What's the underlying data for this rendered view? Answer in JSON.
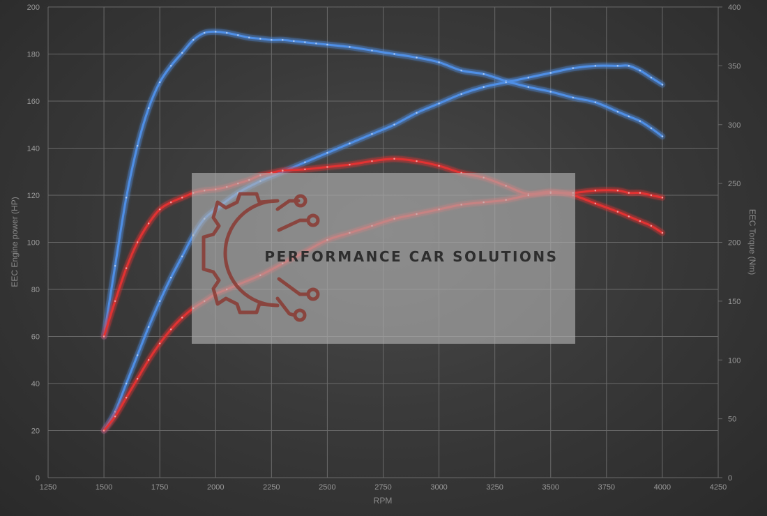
{
  "chart_data": {
    "type": "line",
    "title": "",
    "xlabel": "RPM",
    "ylabel_left": "EEC Engine power (HP)",
    "ylabel_right": "EEC Torque (Nm)",
    "xlim": [
      1250,
      4250
    ],
    "ylim_left": [
      0,
      200
    ],
    "ylim_right": [
      0,
      400
    ],
    "x_ticks": [
      1250,
      1500,
      1750,
      2000,
      2250,
      2500,
      2750,
      3000,
      3250,
      3500,
      3750,
      4000,
      4250
    ],
    "y_left_ticks": [
      0,
      20,
      40,
      60,
      80,
      100,
      120,
      140,
      160,
      180,
      200
    ],
    "y_right_ticks": [
      0,
      50,
      100,
      150,
      200,
      250,
      300,
      350,
      400
    ],
    "grid": true,
    "series": [
      {
        "axis": "right",
        "color": "#4f8fe6",
        "x": [
          1500,
          1550,
          1600,
          1650,
          1700,
          1750,
          1800,
          1850,
          1900,
          1950,
          2000,
          2050,
          2100,
          2150,
          2200,
          2250,
          2300,
          2350,
          2400,
          2450,
          2500,
          2600,
          2700,
          2800,
          2900,
          3000,
          3100,
          3200,
          3300,
          3400,
          3500,
          3600,
          3700,
          3800,
          3850,
          3900,
          3950,
          4000
        ],
        "y": [
          120,
          180,
          238,
          282,
          314,
          336,
          350,
          361,
          372,
          378,
          379,
          378,
          376,
          374,
          373,
          372,
          372,
          371,
          370,
          369,
          368,
          366,
          363,
          360,
          357,
          353,
          346,
          343,
          337,
          332,
          328,
          323,
          319,
          311,
          307,
          303,
          297,
          290
        ]
      },
      {
        "axis": "left",
        "color": "#4f8fe6",
        "x": [
          1500,
          1550,
          1600,
          1650,
          1700,
          1750,
          1800,
          1850,
          1900,
          1950,
          2000,
          2100,
          2200,
          2300,
          2400,
          2500,
          2600,
          2700,
          2800,
          2900,
          3000,
          3100,
          3200,
          3300,
          3400,
          3500,
          3600,
          3700,
          3800,
          3850,
          3900,
          3950,
          4000
        ],
        "y": [
          20,
          28,
          40,
          52,
          64,
          75,
          85,
          94,
          103,
          110,
          114,
          121,
          126,
          130,
          134,
          138,
          142,
          146,
          150,
          155,
          159,
          163,
          166,
          168,
          170,
          172,
          174,
          175,
          175,
          175,
          173,
          170,
          167
        ]
      },
      {
        "axis": "right",
        "color": "#e23232",
        "x": [
          1500,
          1550,
          1600,
          1650,
          1700,
          1750,
          1800,
          1850,
          1900,
          1950,
          2000,
          2050,
          2100,
          2150,
          2200,
          2250,
          2300,
          2400,
          2500,
          2600,
          2700,
          2800,
          2900,
          3000,
          3100,
          3200,
          3300,
          3400,
          3500,
          3600,
          3700,
          3800,
          3850,
          3900,
          3950,
          4000
        ],
        "y": [
          120,
          150,
          178,
          200,
          216,
          228,
          234,
          238,
          242,
          244,
          245,
          247,
          250,
          253,
          257,
          259,
          261,
          262,
          264,
          266,
          269,
          271,
          269,
          265,
          259,
          255,
          248,
          241,
          243,
          240,
          233,
          226,
          222,
          218,
          214,
          208
        ]
      },
      {
        "axis": "left",
        "color": "#e23232",
        "x": [
          1500,
          1550,
          1600,
          1650,
          1700,
          1750,
          1800,
          1850,
          1900,
          1950,
          2000,
          2050,
          2100,
          2200,
          2300,
          2400,
          2500,
          2600,
          2700,
          2800,
          2900,
          3000,
          3100,
          3200,
          3300,
          3400,
          3500,
          3600,
          3700,
          3800,
          3850,
          3900,
          3950,
          4000
        ],
        "y": [
          20,
          26,
          34,
          42,
          50,
          57,
          63,
          68,
          72,
          75,
          78,
          80,
          82,
          86,
          91,
          96,
          101,
          104,
          107,
          110,
          112,
          114,
          116,
          117,
          118,
          120,
          121,
          121,
          122,
          122,
          121,
          121,
          120,
          119
        ]
      }
    ]
  },
  "watermark": {
    "brand_text": "PERFORMANCE CAR SOLUTIONS",
    "logo_icon": "gear-circuit-logo-icon",
    "logo_color": "#8a3a32",
    "box_color": "#a8a8a8"
  }
}
